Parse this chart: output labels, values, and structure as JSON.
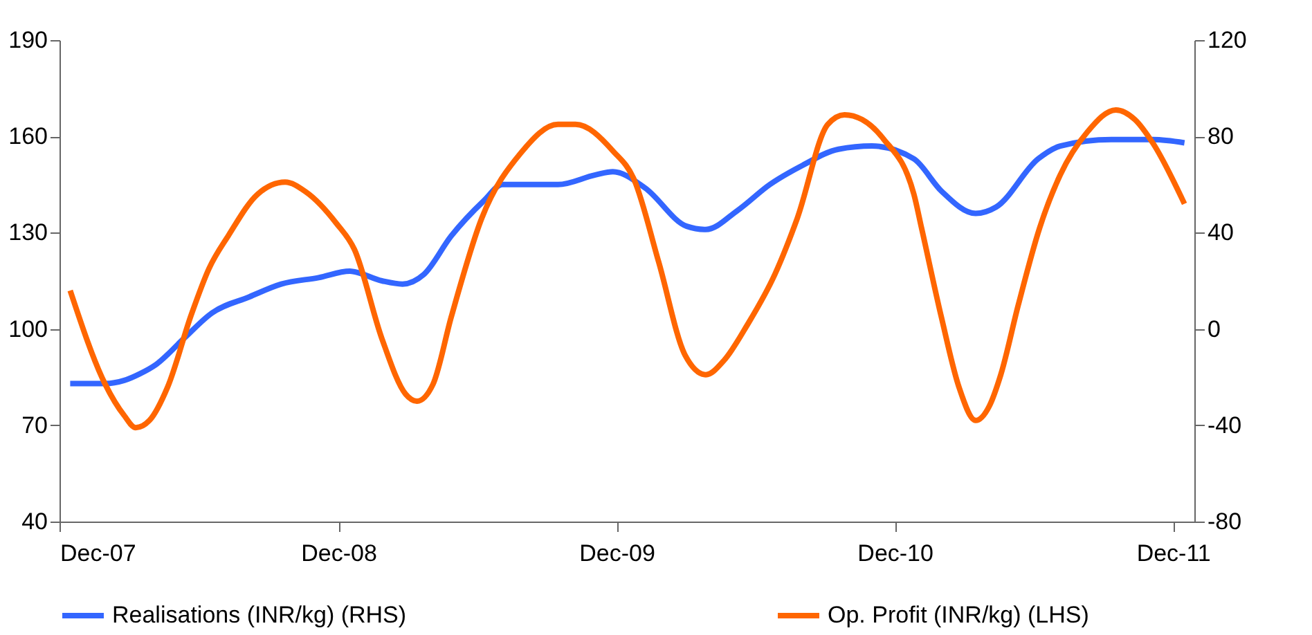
{
  "chart_data": {
    "type": "line",
    "xlim": [
      "2007-12-01",
      "2011-12-29"
    ],
    "xticks": [
      {
        "value": "2007-12-01",
        "label": "Dec-07"
      },
      {
        "value": "2008-12-01",
        "label": "Dec-08"
      },
      {
        "value": "2009-12-01",
        "label": "Dec-09"
      },
      {
        "value": "2010-12-01",
        "label": "Dec-10"
      },
      {
        "value": "2011-12-01",
        "label": "Dec-11"
      }
    ],
    "ylim": [
      40,
      190
    ],
    "yticks": [
      40,
      70,
      100,
      130,
      160,
      190
    ],
    "y2lim": [
      -80,
      120
    ],
    "y2ticks": [
      -80,
      -40,
      0,
      40,
      80,
      120
    ],
    "grid": false,
    "legend": "bottom",
    "marker": "none",
    "line_style": "solid",
    "series": [
      {
        "name": "Realisations (INR/kg) (RHS)",
        "color": "#3366ff",
        "axis": "y",
        "x": [
          "2007-12-15",
          "2008-01-30",
          "2008-02-24",
          "2008-03-15",
          "2008-04-06",
          "2008-05-12",
          "2008-06-18",
          "2008-08-06",
          "2008-09-17",
          "2008-11-05",
          "2008-12-16",
          "2009-01-27",
          "2009-02-23",
          "2009-03-23",
          "2009-04-28",
          "2009-06-10",
          "2009-07-04",
          "2009-09-15",
          "2009-11-03",
          "2009-11-26",
          "2010-01-07",
          "2010-03-03",
          "2010-03-28",
          "2010-05-09",
          "2010-06-20",
          "2010-08-02",
          "2010-09-18",
          "2010-11-01",
          "2010-12-26",
          "2011-01-31",
          "2011-03-17",
          "2011-04-13",
          "2011-06-07",
          "2011-07-06",
          "2011-09-11",
          "2011-11-05",
          "2011-12-16"
        ],
        "values": [
          83,
          83,
          84,
          86,
          89,
          97,
          105,
          110,
          114,
          116,
          118,
          115,
          114,
          117,
          129,
          140,
          145,
          145,
          148,
          149,
          144,
          132,
          131,
          137,
          145,
          151,
          156,
          157,
          153,
          143,
          136,
          138,
          153,
          157,
          159,
          159,
          158
        ]
      },
      {
        "name": "Op. Profit (INR/kg) (LHS)",
        "color": "#ff6600",
        "axis": "y2",
        "x": [
          "2007-12-15",
          "2008-01-30",
          "2008-02-24",
          "2008-03-10",
          "2008-03-28",
          "2008-04-21",
          "2008-05-22",
          "2008-06-14",
          "2008-07-10",
          "2008-08-17",
          "2008-09-22",
          "2008-10-19",
          "2008-11-28",
          "2008-12-22",
          "2009-01-27",
          "2009-02-27",
          "2009-03-14",
          "2009-04-04",
          "2009-04-28",
          "2009-06-07",
          "2009-07-28",
          "2009-09-15",
          "2009-10-08",
          "2009-11-26",
          "2009-12-24",
          "2010-01-25",
          "2010-03-01",
          "2010-03-28",
          "2010-04-21",
          "2010-05-22",
          "2010-06-27",
          "2010-07-26",
          "2010-09-04",
          "2010-09-26",
          "2010-10-19",
          "2010-11-16",
          "2010-12-26",
          "2011-01-05",
          "2011-01-31",
          "2011-02-23",
          "2011-03-17",
          "2011-04-04",
          "2011-04-19",
          "2011-05-12",
          "2011-06-09",
          "2011-07-06",
          "2011-08-11",
          "2011-09-17",
          "2011-10-12",
          "2011-11-05",
          "2011-12-16"
        ],
        "values": [
          16,
          -23,
          -36,
          -41,
          -38,
          -24,
          6,
          25,
          39,
          56,
          61,
          57,
          44,
          33,
          -4,
          -27,
          -30,
          -23,
          5,
          46,
          73,
          85,
          85,
          74,
          62,
          28,
          -11,
          -19,
          -13,
          2,
          23,
          46,
          85,
          89,
          87,
          79,
          56,
          42,
          5,
          -24,
          -38,
          -32,
          -19,
          10,
          42,
          64,
          82,
          91,
          87,
          77,
          52
        ]
      }
    ]
  }
}
